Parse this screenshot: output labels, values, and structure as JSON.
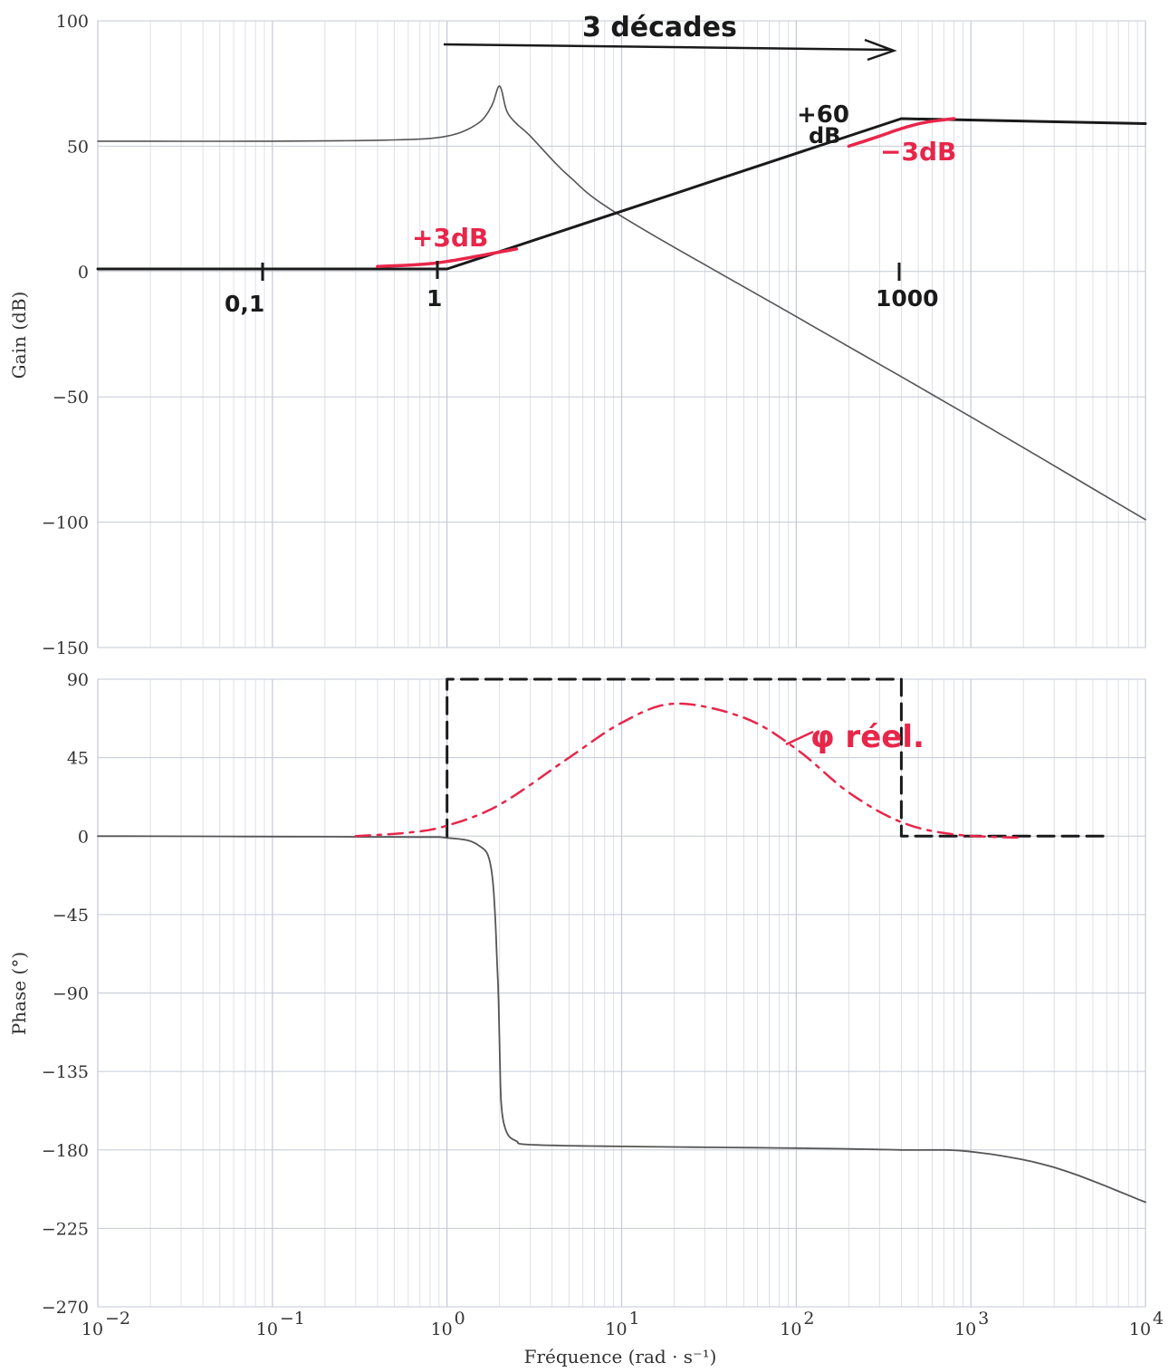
{
  "chart_data": [
    {
      "type": "line",
      "panel": "gain",
      "xscale": "log",
      "xlim": [
        0.01,
        10000
      ],
      "ylim": [
        -150,
        100
      ],
      "yticks": [
        100,
        50,
        0,
        -50,
        -100,
        -150
      ],
      "ytick_labels": [
        "100",
        "50",
        "0",
        "−50",
        "−100",
        "−150"
      ],
      "ylabel": "Gain (dB)",
      "grid": true,
      "series": [
        {
          "role": "printed-bode-gain",
          "x": [
            0.01,
            0.1,
            0.5,
            1,
            1.5,
            1.8,
            2,
            2.2,
            2.5,
            3,
            5,
            10,
            100,
            1000,
            10000
          ],
          "y": [
            52,
            52,
            52.5,
            54,
            59,
            66,
            74,
            64,
            59,
            54,
            38,
            22,
            -18,
            -58,
            -99
          ]
        },
        {
          "role": "handwritten-asymptote",
          "x": [
            0.01,
            1,
            400,
            10000
          ],
          "y": [
            1,
            1,
            61,
            59
          ]
        },
        {
          "role": "handwritten-real-curve",
          "x": [
            0.4,
            0.7,
            1,
            1.6,
            2.5
          ],
          "y": [
            2,
            2.8,
            4,
            6.5,
            9
          ]
        },
        {
          "role": "handwritten-real-curve-2",
          "x": [
            200,
            300,
            400,
            550,
            800
          ],
          "y": [
            50,
            54,
            57,
            59.5,
            61
          ]
        }
      ],
      "annotations": {
        "decades_label": "3 décades",
        "plus3db": "+3dB",
        "plus60db_a": "+60",
        "plus60db_b": "dB",
        "minus3db": "−3dB",
        "mark_01": "0,1",
        "mark_1": "1",
        "mark_1000": "1000"
      }
    },
    {
      "type": "line",
      "panel": "phase",
      "xscale": "log",
      "xlim": [
        0.01,
        10000
      ],
      "ylim": [
        -270,
        90
      ],
      "yticks": [
        90,
        45,
        0,
        -45,
        -90,
        -135,
        -180,
        -225,
        -270
      ],
      "ytick_labels": [
        "90",
        "45",
        "0",
        "−45",
        "−90",
        "−135",
        "−180",
        "−225",
        "−270"
      ],
      "xticks": [
        0.01,
        0.1,
        1,
        10,
        100,
        1000,
        10000
      ],
      "ylabel": "Phase (°)",
      "grid": true,
      "series": [
        {
          "role": "printed-bode-phase",
          "x": [
            0.01,
            0.5,
            1,
            1.5,
            1.8,
            1.95,
            2,
            2.05,
            2.2,
            2.5,
            3,
            10,
            100,
            400,
            1000,
            3000,
            10000
          ],
          "y": [
            0,
            -0.5,
            -1,
            -5,
            -20,
            -80,
            -120,
            -155,
            -170,
            -175,
            -177,
            -178,
            -179,
            -180,
            -181,
            -190,
            -210
          ]
        },
        {
          "role": "handwritten-asymptote",
          "x": [
            1,
            1,
            400,
            400,
            6000
          ],
          "y": [
            0,
            90,
            90,
            0,
            0
          ]
        },
        {
          "role": "handwritten-real-phase",
          "x": [
            0.3,
            0.6,
            1,
            2,
            5,
            10,
            20,
            50,
            100,
            200,
            400,
            800,
            2000
          ],
          "y": [
            0,
            2,
            6,
            18,
            45,
            65,
            76,
            68,
            50,
            25,
            8,
            1,
            -1
          ]
        }
      ],
      "annotations": {
        "phi_label": "φ réel."
      }
    }
  ],
  "xaxis": {
    "tick_labels": [
      "10",
      "10",
      "10",
      "10",
      "10",
      "10",
      "10"
    ],
    "exponents": [
      "−2",
      "−1",
      "0",
      "1",
      "2",
      "3",
      "4"
    ],
    "label": "Fréquence (rad · s⁻¹)"
  },
  "colors": {
    "printed_curve": "#555555",
    "handwritten_black": "#1a1a1a",
    "handwritten_red": "#e8264a",
    "grid": "#d4d9e2"
  }
}
